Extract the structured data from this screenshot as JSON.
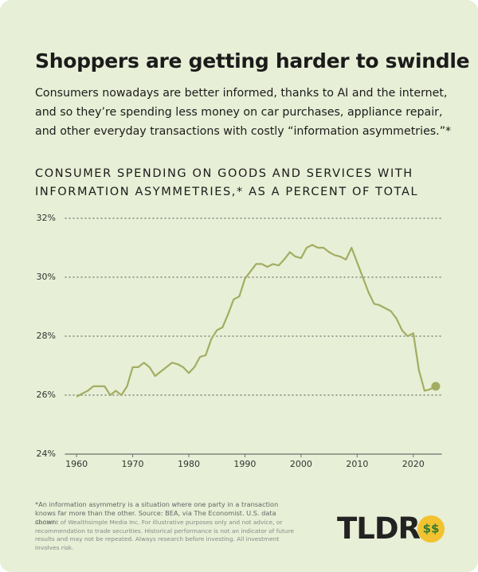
{
  "chart_data": {
    "type": "line",
    "title": "Shoppers are getting harder to swindle",
    "subtitle": "Consumers nowadays are better informed, thanks to AI and the internet, and so they’re spending less money on car purchases, appliance repair, and other everyday transactions with costly “information asymmetries.”*",
    "chart_title": "CONSUMER SPENDING ON GOODS AND SERVICES WITH INFORMATION ASYMMETRIES,* AS A PERCENT OF TOTAL",
    "x": [
      1960,
      1961,
      1962,
      1963,
      1964,
      1965,
      1966,
      1967,
      1968,
      1969,
      1970,
      1971,
      1972,
      1973,
      1974,
      1975,
      1976,
      1977,
      1978,
      1979,
      1980,
      1981,
      1982,
      1983,
      1984,
      1985,
      1986,
      1987,
      1988,
      1989,
      1990,
      1991,
      1992,
      1993,
      1994,
      1995,
      1996,
      1997,
      1998,
      1999,
      2000,
      2001,
      2002,
      2003,
      2004,
      2005,
      2006,
      2007,
      2008,
      2009,
      2010,
      2011,
      2012,
      2013,
      2014,
      2015,
      2016,
      2017,
      2018,
      2019,
      2020,
      2021,
      2022,
      2023,
      2024
    ],
    "values": [
      25.95,
      26.05,
      26.15,
      26.3,
      26.3,
      26.3,
      26.0,
      26.15,
      26.0,
      26.3,
      26.95,
      26.95,
      27.1,
      26.95,
      26.65,
      26.8,
      26.95,
      27.1,
      27.05,
      26.95,
      26.75,
      26.95,
      27.3,
      27.35,
      27.9,
      28.2,
      28.3,
      28.75,
      29.25,
      29.35,
      29.95,
      30.2,
      30.45,
      30.45,
      30.35,
      30.45,
      30.4,
      30.6,
      30.85,
      30.7,
      30.65,
      31.0,
      31.1,
      31.0,
      31.0,
      30.85,
      30.75,
      30.7,
      30.6,
      31.0,
      30.5,
      30.0,
      29.5,
      29.1,
      29.05,
      28.95,
      28.85,
      28.6,
      28.2,
      28.0,
      28.1,
      26.85,
      26.15,
      26.2,
      26.3
    ],
    "color": "#a3ad62",
    "xlim": [
      1958,
      2025
    ],
    "xticks": [
      1960,
      1970,
      1980,
      1990,
      2000,
      2010,
      2020
    ],
    "ylim": [
      24,
      32
    ],
    "yticks": [
      {
        "value": 24,
        "label": "24%"
      },
      {
        "value": 26,
        "label": "26%"
      },
      {
        "value": 28,
        "label": "28%"
      },
      {
        "value": 30,
        "label": "30%"
      },
      {
        "value": 32,
        "label": "32%"
      }
    ],
    "grid": true,
    "footnote": "*An information asymmetry is a situation where one party in a transaction knows far more than the other. Source: BEA, via The Economist. U.S. data shown.",
    "disclaimer": "Content of Wealthsimple Media Inc. For illustrative purposes only and not advice, or recommendation to trade securities. Historical performance is not an indicator of future results and may not be repeated. Always research before investing. All investment involves risk.",
    "logo": "TLDR"
  }
}
